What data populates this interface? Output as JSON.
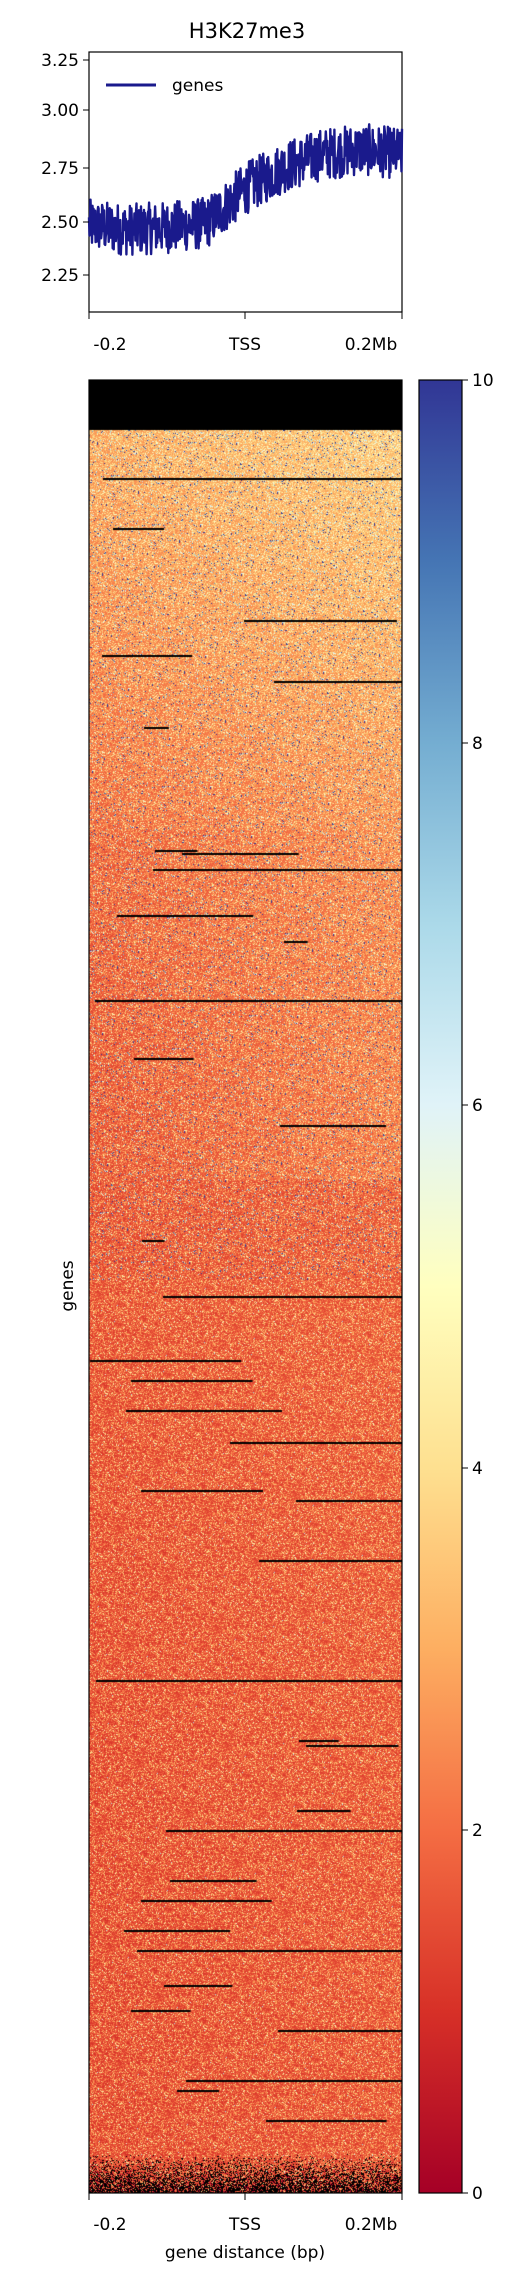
{
  "chart_data": [
    {
      "type": "line",
      "title": "H3K27me3",
      "xlabel": "",
      "ylabel": "",
      "ylim": [
        2.05,
        3.25
      ],
      "yticks": [
        "2.25",
        "2.50",
        "2.75",
        "3.00",
        "3.25"
      ],
      "xticks": [
        "-0.2",
        "TSS",
        "0.2Mb"
      ],
      "legend": {
        "position": "top-left",
        "entries": [
          "genes"
        ]
      },
      "series": [
        {
          "name": "genes",
          "color": "#1a1a8c",
          "x": [
            -0.2,
            -0.15,
            -0.1,
            -0.05,
            0.0,
            0.05,
            0.1,
            0.15,
            0.2
          ],
          "mean": [
            2.45,
            2.43,
            2.44,
            2.46,
            2.62,
            2.72,
            2.78,
            2.8,
            2.78
          ],
          "noise": 0.12
        }
      ]
    },
    {
      "type": "heatmap",
      "title": "",
      "xlabel": "gene distance (bp)",
      "ylabel": "genes",
      "xticks": [
        "-0.2",
        "TSS",
        "0.2Mb"
      ],
      "colorbar": {
        "min": 0,
        "max": 10,
        "ticks": [
          "0",
          "2",
          "4",
          "6",
          "8",
          "10"
        ],
        "colormap": "RdYlBu",
        "colors": [
          "#a50026",
          "#d73027",
          "#f46d43",
          "#fdae61",
          "#fee090",
          "#ffffbf",
          "#e0f3f8",
          "#abd9e9",
          "#74add1",
          "#4575b4",
          "#313695"
        ]
      },
      "description_values": {
        "typical_value": 1.5,
        "upper_section_value": 3.2
      }
    }
  ]
}
